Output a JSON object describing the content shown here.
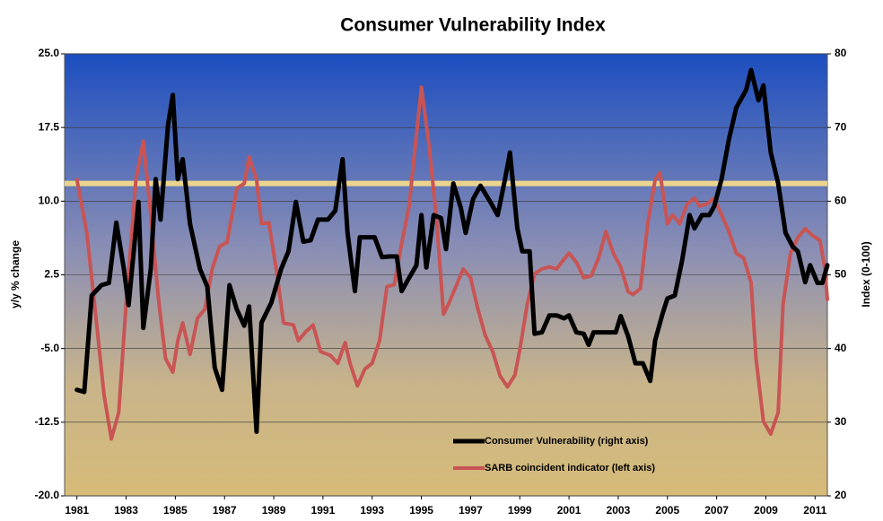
{
  "chart_data": {
    "type": "line",
    "title": "Consumer Vulnerability Index",
    "ylabel": "y/y % change",
    "y2label": "Index (0-100)",
    "xlim": [
      1980.5,
      2011.5
    ],
    "xticks": [
      1981,
      1983,
      1985,
      1987,
      1989,
      1991,
      1993,
      1995,
      1997,
      1999,
      2001,
      2003,
      2005,
      2007,
      2009,
      2011
    ],
    "ylim": [
      -20,
      25
    ],
    "yticks": [
      {
        "value": -20,
        "label": "-20.0"
      },
      -12.5,
      {
        "value": -5,
        "label": "-5.0"
      },
      2.5,
      {
        "value": 10,
        "label": "10.0"
      },
      17.5,
      {
        "value": 25,
        "label": "25.0"
      }
    ],
    "y2lim": [
      20,
      80
    ],
    "y2ticks": [
      20,
      30,
      40,
      50,
      60,
      70,
      80
    ],
    "grid": true,
    "legend": "bottom-right",
    "reference_line": {
      "value": 62.4,
      "axis": "y2",
      "color": "#ead48e"
    },
    "series": [
      {
        "name": "Consumer Vulnerability (right axis)",
        "color": "#000000",
        "axis": "y2",
        "x": [
          1981.0,
          1981.3,
          1981.6,
          1982.0,
          1982.3,
          1982.6,
          1982.9,
          1983.1,
          1983.5,
          1983.7,
          1984.0,
          1984.2,
          1984.4,
          1984.7,
          1984.9,
          1985.1,
          1985.3,
          1985.6,
          1986.0,
          1986.3,
          1986.6,
          1986.9,
          1987.2,
          1987.5,
          1987.8,
          1988.0,
          1988.3,
          1988.5,
          1988.9,
          1989.3,
          1989.6,
          1989.9,
          1990.2,
          1990.5,
          1990.8,
          1991.2,
          1991.5,
          1991.8,
          1992.0,
          1992.3,
          1992.5,
          1992.8,
          1993.1,
          1993.4,
          1993.7,
          1994.0,
          1994.2,
          1994.5,
          1994.8,
          1995.0,
          1995.2,
          1995.5,
          1995.8,
          1996.0,
          1996.3,
          1996.6,
          1996.8,
          1997.1,
          1997.4,
          1997.8,
          1998.1,
          1998.4,
          1998.6,
          1998.9,
          1999.1,
          1999.4,
          1999.6,
          1999.9,
          2000.2,
          2000.5,
          2000.8,
          2001.0,
          2001.3,
          2001.6,
          2001.8,
          2002.0,
          2002.3,
          2002.6,
          2002.9,
          2003.1,
          2003.4,
          2003.7,
          2004.0,
          2004.3,
          2004.5,
          2004.8,
          2005.0,
          2005.3,
          2005.6,
          2005.9,
          2006.1,
          2006.4,
          2006.7,
          2006.9,
          2007.2,
          2007.5,
          2007.8,
          2008.2,
          2008.4,
          2008.7,
          2008.9,
          2009.2,
          2009.5,
          2009.8,
          2010.1,
          2010.3,
          2010.6,
          2010.8,
          2011.1,
          2011.3,
          2011.5
        ],
        "values": [
          34.4,
          34.1,
          47.2,
          48.6,
          48.9,
          57.1,
          51.0,
          45.9,
          59.9,
          42.8,
          50.8,
          63.0,
          57.5,
          70.3,
          74.4,
          63.0,
          65.7,
          56.9,
          50.8,
          48.4,
          37.4,
          34.4,
          48.6,
          45.3,
          43.1,
          45.7,
          28.7,
          43.5,
          46.2,
          50.8,
          53.2,
          59.9,
          54.5,
          54.7,
          57.5,
          57.5,
          58.7,
          65.7,
          55.7,
          47.8,
          55.1,
          55.1,
          55.1,
          52.4,
          52.5,
          52.5,
          47.8,
          49.6,
          51.3,
          58.1,
          51.0,
          58.1,
          57.7,
          53.5,
          62.4,
          59.1,
          55.7,
          60.3,
          62.1,
          59.9,
          58.1,
          63.0,
          66.6,
          56.3,
          53.2,
          53.2,
          42.0,
          42.2,
          44.5,
          44.5,
          44.1,
          44.5,
          42.2,
          42.0,
          40.5,
          42.2,
          42.2,
          42.2,
          42.2,
          44.4,
          41.7,
          38.0,
          38.0,
          35.6,
          41.1,
          44.7,
          46.8,
          47.2,
          52.0,
          58.1,
          56.3,
          58.1,
          58.1,
          59.3,
          63.0,
          68.4,
          72.7,
          75.1,
          77.8,
          73.7,
          75.7,
          66.6,
          62.4,
          55.7,
          53.8,
          53.2,
          49.0,
          51.3,
          48.9,
          48.9,
          51.3
        ]
      },
      {
        "name": "SARB coincident indicator (left axis)",
        "color": "#c95454",
        "axis": "y",
        "x": [
          1981.0,
          1981.4,
          1981.8,
          1982.1,
          1982.4,
          1982.7,
          1983.0,
          1983.4,
          1983.7,
          1984.0,
          1984.3,
          1984.6,
          1984.9,
          1985.1,
          1985.3,
          1985.6,
          1985.9,
          1986.2,
          1986.5,
          1986.8,
          1987.1,
          1987.5,
          1987.8,
          1988.0,
          1988.3,
          1988.5,
          1988.8,
          1989.1,
          1989.4,
          1989.8,
          1990.0,
          1990.3,
          1990.6,
          1990.9,
          1991.3,
          1991.6,
          1991.9,
          1992.1,
          1992.4,
          1992.7,
          1993.0,
          1993.3,
          1993.6,
          1993.9,
          1994.2,
          1994.5,
          1994.8,
          1995.0,
          1995.3,
          1995.6,
          1995.9,
          1996.1,
          1996.4,
          1996.7,
          1997.0,
          1997.3,
          1997.6,
          1997.9,
          1998.2,
          1998.5,
          1998.8,
          1999.0,
          1999.3,
          1999.6,
          1999.9,
          2000.2,
          2000.5,
          2000.7,
          2001.0,
          2001.3,
          2001.6,
          2001.9,
          2002.2,
          2002.5,
          2002.8,
          2003.1,
          2003.4,
          2003.6,
          2003.9,
          2004.2,
          2004.5,
          2004.7,
          2005.0,
          2005.2,
          2005.5,
          2005.8,
          2006.1,
          2006.3,
          2006.6,
          2006.9,
          2007.2,
          2007.5,
          2007.8,
          2008.1,
          2008.4,
          2008.6,
          2008.9,
          2009.2,
          2009.5,
          2009.7,
          2010.0,
          2010.3,
          2010.6,
          2010.9,
          2011.2,
          2011.4,
          2011.5
        ],
        "values": [
          12.2,
          6.8,
          -2.4,
          -9.7,
          -14.2,
          -11.5,
          -0.5,
          12.2,
          16.1,
          8.6,
          0.4,
          -6.0,
          -7.4,
          -4.2,
          -2.4,
          -5.6,
          -1.9,
          -1.0,
          3.1,
          5.4,
          5.8,
          11.3,
          11.8,
          14.5,
          12.2,
          7.7,
          7.8,
          3.1,
          -2.4,
          -2.6,
          -4.2,
          -3.3,
          -2.6,
          -5.3,
          -5.7,
          -6.5,
          -4.4,
          -6.5,
          -8.8,
          -7.1,
          -6.5,
          -4.2,
          1.3,
          1.5,
          5.7,
          9.5,
          16.8,
          21.6,
          15.9,
          8.6,
          -1.5,
          -0.5,
          1.3,
          3.1,
          2.2,
          -1.0,
          -3.7,
          -5.3,
          -7.8,
          -8.9,
          -7.7,
          -5.1,
          -0.5,
          2.6,
          3.1,
          3.3,
          3.1,
          3.8,
          4.7,
          3.8,
          2.2,
          2.4,
          4.2,
          6.9,
          4.7,
          3.3,
          0.8,
          0.5,
          1.1,
          7.7,
          12.2,
          12.9,
          7.7,
          8.6,
          7.7,
          9.7,
          10.3,
          9.5,
          9.7,
          10.3,
          8.6,
          6.9,
          4.7,
          4.2,
          1.7,
          -6.0,
          -12.4,
          -13.7,
          -11.5,
          -0.5,
          4.7,
          6.3,
          7.2,
          6.5,
          6.0,
          3.1,
          0.0
        ]
      }
    ]
  }
}
